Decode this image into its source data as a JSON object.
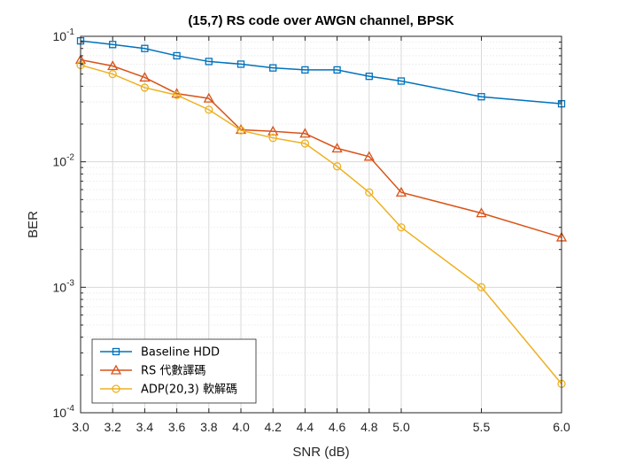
{
  "chart_data": {
    "type": "line",
    "title": "(15,7) RS code over AWGN channel, BPSK",
    "xlabel": "SNR (dB)",
    "ylabel": "BER",
    "yscale": "log",
    "xlim": [
      3.0,
      6.0
    ],
    "ylim": [
      0.0001,
      0.1
    ],
    "grid": true,
    "legend_position": "bottom-left",
    "x_ticks": [
      "3.0",
      "3.2",
      "3.4",
      "3.6",
      "3.8",
      "4.0",
      "4.2",
      "4.4",
      "4.6",
      "4.8",
      "5.0",
      "5.5",
      "6.0"
    ],
    "y_ticks": [
      {
        "value": 0.1,
        "base": "10",
        "exp": "-1"
      },
      {
        "value": 0.01,
        "base": "10",
        "exp": "-2"
      },
      {
        "value": 0.001,
        "base": "10",
        "exp": "-3"
      },
      {
        "value": 0.0001,
        "base": "10",
        "exp": "-4"
      }
    ],
    "x": [
      3.0,
      3.2,
      3.4,
      3.6,
      3.8,
      4.0,
      4.2,
      4.4,
      4.6,
      4.8,
      5.0,
      5.5,
      6.0
    ],
    "series": [
      {
        "name": "Baseline HDD",
        "color": "#0072BD",
        "marker": "square",
        "values": [
          0.092,
          0.086,
          0.08,
          0.07,
          0.063,
          0.06,
          0.056,
          0.054,
          0.054,
          0.048,
          0.044,
          0.033,
          0.029
        ]
      },
      {
        "name": "RS 代數譯碼",
        "color": "#D95319",
        "marker": "triangle",
        "values": [
          0.065,
          0.058,
          0.047,
          0.035,
          0.032,
          0.018,
          0.0175,
          0.0168,
          0.0128,
          0.011,
          0.0057,
          0.0039,
          0.0025
        ]
      },
      {
        "name": "ADP(20,3) 軟解碼",
        "color": "#EDB120",
        "marker": "circle",
        "values": [
          0.059,
          0.05,
          0.039,
          0.034,
          0.026,
          0.0178,
          0.0155,
          0.014,
          0.0092,
          0.0057,
          0.003,
          0.001,
          0.00017
        ]
      }
    ]
  }
}
